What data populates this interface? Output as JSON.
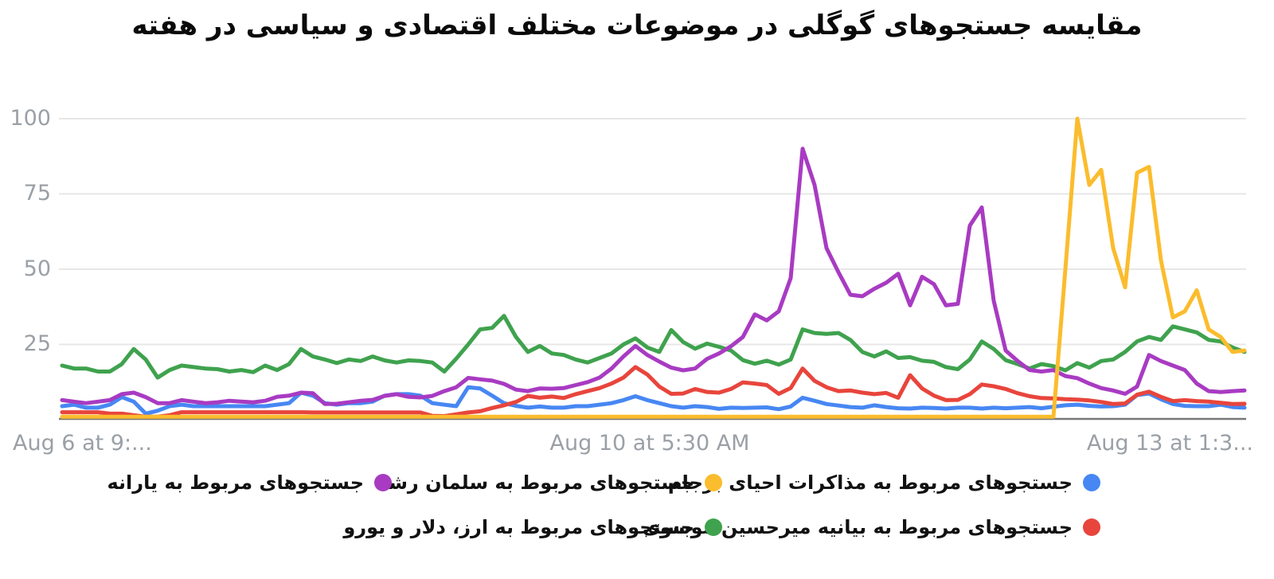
{
  "title": "مقایسه جستجوهای گوگلی در موضوعات مختلف اقتصادی و سیاسی در هفته",
  "colors": {
    "blue": "#4787F3",
    "red": "#E8453C",
    "green": "#3FA24E",
    "purple": "#A83BC2",
    "yellow": "#FBBC2D",
    "grid": "#e7e7e7",
    "axis_line": "#787878",
    "axis_text": "#9aa0a6"
  },
  "y_axis": {
    "ticks": [
      "100",
      "75",
      "50",
      "25"
    ]
  },
  "x_axis": {
    "labels": [
      {
        "text": "Aug 6 at 9:...",
        "align": "left"
      },
      {
        "text": "Aug 10 at 5:30 AM",
        "align": "center"
      },
      {
        "text": "Aug 13 at 1:3...",
        "align": "right"
      }
    ]
  },
  "legend": [
    {
      "label": "جستجوهای مربوط به مذاکرات احیای برجام",
      "color": "#4787F3"
    },
    {
      "label": "جستجوهای مربوط به سلمان رشد",
      "color": "#FBBC2D"
    },
    {
      "label": "جستجوهای مربوط به یارانه",
      "color": "#A83BC2"
    },
    {
      "label": "جستجوهای مربوط به بیانیه میرحسین موسوی",
      "color": "#E8453C"
    },
    {
      "label": "جستجوهای مربوط به ارز، دلار و یورو",
      "color": "#3FA24E"
    }
  ],
  "chart_data": {
    "type": "line",
    "title": "مقایسه جستجوهای گوگلی در موضوعات مختلف اقتصادی و سیاسی در هفته",
    "x_tick_labels": [
      "Aug 6 at 9:...",
      "Aug 10 at 5:30 AM",
      "Aug 13 at 1:3..."
    ],
    "ylim": [
      0,
      100
    ],
    "y_ticks": [
      100,
      75,
      50,
      25
    ],
    "grid": true,
    "legend_position": "bottom",
    "series": [
      {
        "name": "جستجوهای مربوط به مذاکرات احیای برجام",
        "color": "#4787F3",
        "values": [
          4.5,
          5,
          4,
          4,
          5,
          7.5,
          6,
          2,
          3,
          4.5,
          5,
          4.5,
          4.5,
          4.5,
          4.5,
          4.5,
          4.5,
          4.5,
          5,
          5.5,
          9,
          8,
          5.5,
          5,
          5.5,
          5.5,
          6,
          8,
          8.5,
          8.5,
          8,
          5.5,
          5,
          4.5,
          10.8,
          10.4,
          8,
          5.5,
          4.6,
          4,
          4.4,
          4,
          4,
          4.5,
          4.5,
          5,
          5.5,
          6.5,
          7.8,
          6.5,
          5.5,
          4.5,
          4,
          4.5,
          4.2,
          3.6,
          4,
          3.9,
          4,
          4.1,
          3.5,
          4.4,
          7.3,
          6.3,
          5.2,
          4.7,
          4.2,
          4,
          4.8,
          4.2,
          3.8,
          3.7,
          4,
          3.9,
          3.7,
          4,
          4,
          3.7,
          4,
          3.8,
          4,
          4.2,
          3.8,
          4.3,
          4.8,
          5,
          4.6,
          4.4,
          4.5,
          5,
          8.2,
          8.7,
          6.8,
          5.2,
          4.6,
          4.5,
          4.5,
          5,
          4.2,
          4
        ]
      },
      {
        "name": "جستجوهای مربوط به بیانیه میرحسین موسوی",
        "color": "#E8453C",
        "values": [
          2.5,
          2.5,
          2.5,
          2.5,
          2,
          2,
          1.5,
          1,
          1,
          1.5,
          2.5,
          2.5,
          2.5,
          2.5,
          2.5,
          2.5,
          2.5,
          2.5,
          2.5,
          2.5,
          2.5,
          2.4,
          2.4,
          2.4,
          2.4,
          2.4,
          2.4,
          2.4,
          2.4,
          2.4,
          2.4,
          1.3,
          1.2,
          1.8,
          2.4,
          2.8,
          3.9,
          4.8,
          5.9,
          7.9,
          7.3,
          7.7,
          7.2,
          8.5,
          9.5,
          10.5,
          12,
          14,
          17.5,
          15,
          11,
          8.6,
          8.7,
          10.2,
          9.2,
          9,
          10.2,
          12.4,
          12,
          11.5,
          8.6,
          10.5,
          17,
          12.9,
          10.8,
          9.5,
          9.7,
          9,
          8.5,
          8.9,
          7.3,
          14.8,
          10.4,
          8,
          6.5,
          6.6,
          8.5,
          11.7,
          11.1,
          10.2,
          8.8,
          7.8,
          7.2,
          7.1,
          6.8,
          6.7,
          6.4,
          5.9,
          5.2,
          5.4,
          8.3,
          9.3,
          7.6,
          6.2,
          6.5,
          6.2,
          6,
          5.6,
          5.2,
          5.3
        ]
      },
      {
        "name": "جستجوهای مربوط به ارز، دلار و یورو",
        "color": "#3FA24E",
        "values": [
          18,
          17,
          17,
          16,
          16,
          18.5,
          23.5,
          20,
          14,
          16.5,
          18,
          17.5,
          17,
          16.8,
          16,
          16.5,
          15.8,
          18,
          16.5,
          18.5,
          23.5,
          21,
          20,
          18.8,
          20,
          19.5,
          21,
          19.7,
          19,
          19.7,
          19.5,
          19,
          16,
          20.3,
          25,
          30,
          30.5,
          34.5,
          27.5,
          22.5,
          24.5,
          22,
          21.5,
          20,
          19,
          20.5,
          22,
          25,
          27,
          24,
          22.5,
          29.8,
          25.8,
          23.6,
          25.3,
          24.2,
          23,
          19.8,
          18.6,
          19.6,
          18.3,
          20,
          30,
          28.8,
          28.5,
          28.8,
          26.5,
          22.5,
          21,
          22.7,
          20.5,
          20.8,
          19.6,
          19.2,
          17.5,
          16.8,
          20,
          26,
          23.5,
          19.8,
          18.5,
          17,
          18.5,
          17.8,
          16.4,
          18.8,
          17.3,
          19.5,
          20,
          22.5,
          26,
          27.5,
          26.5,
          31,
          30,
          29,
          26.5,
          26,
          24,
          22.5
        ]
      },
      {
        "name": "جستجوهای مربوط به یارانه",
        "color": "#A83BC2",
        "values": [
          6.5,
          6,
          5.5,
          6,
          6.5,
          8.5,
          9,
          7.5,
          5.5,
          5.5,
          6.5,
          6,
          5.5,
          5.8,
          6.3,
          6,
          5.8,
          6.3,
          7.6,
          8,
          9,
          8.8,
          5.2,
          5.3,
          5.8,
          6.3,
          6.6,
          7.9,
          8.5,
          7.6,
          7.4,
          7.9,
          9.5,
          10.8,
          13.9,
          13.4,
          13,
          11.9,
          10,
          9.5,
          10.4,
          10.3,
          10.5,
          11.5,
          12.5,
          14,
          17,
          21,
          24.5,
          21.5,
          19.3,
          17.3,
          16.4,
          17,
          20.2,
          22,
          24.4,
          27.5,
          35,
          33,
          36,
          47,
          90,
          78,
          57,
          49,
          41.5,
          41,
          43.5,
          45.5,
          48.5,
          38,
          47.5,
          45,
          38,
          38.5,
          64.5,
          70.5,
          39.5,
          23,
          19.5,
          16.5,
          16,
          16.5,
          14.5,
          13.8,
          12,
          10.5,
          9.7,
          8.6,
          11,
          21.5,
          19.5,
          18,
          16.5,
          12,
          9.5,
          9.2,
          9.5,
          9.7
        ]
      },
      {
        "name": "جستجوهای مربوط به سلمان رشد",
        "color": "#FBBC2D",
        "values": [
          1,
          1,
          1,
          1,
          1,
          1,
          1,
          1,
          1,
          1,
          1,
          1,
          1,
          1,
          1,
          1,
          1,
          1,
          1,
          1,
          1,
          1,
          1,
          1,
          1,
          1,
          1,
          1,
          1,
          1,
          1,
          1,
          1,
          1,
          1,
          1,
          1,
          1,
          1,
          1,
          1,
          1,
          1,
          1,
          1,
          1,
          1,
          1,
          1,
          1,
          1,
          1,
          1,
          1,
          1,
          1,
          1,
          1,
          1,
          1,
          1,
          1,
          1,
          1,
          1,
          1,
          1,
          1,
          1,
          1,
          1,
          1,
          1,
          1,
          1,
          1,
          1,
          1,
          1,
          1,
          1,
          1,
          1,
          1,
          50,
          100,
          78,
          83,
          57,
          44,
          82,
          84,
          53,
          34,
          36,
          43,
          30,
          27.5,
          22.5,
          23
        ]
      }
    ]
  }
}
